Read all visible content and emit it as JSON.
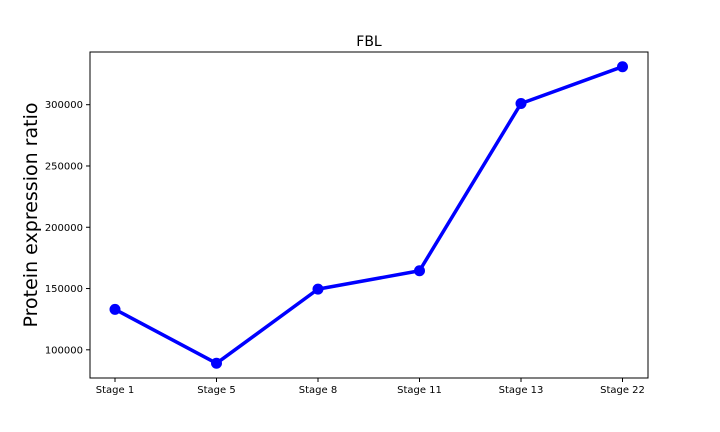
{
  "chart_data": {
    "type": "line",
    "title": "FBL",
    "xlabel": "",
    "ylabel": "Protein expression ratio",
    "categories": [
      "Stage 1",
      "Stage 5",
      "Stage 8",
      "Stage 11",
      "Stage 13",
      "Stage 22"
    ],
    "series": [
      {
        "values": [
          133000,
          89000,
          149500,
          164500,
          301000,
          331000
        ]
      }
    ],
    "ylim": [
      77000,
      343000
    ],
    "yticks": [
      100000,
      150000,
      200000,
      250000,
      300000
    ],
    "ytick_labels": [
      "100000",
      "150000",
      "200000",
      "250000",
      "300000"
    ],
    "grid": false,
    "legend": "none",
    "colors": {
      "line": "#0000ff",
      "axes": "#000000",
      "background": "#ffffff"
    }
  }
}
